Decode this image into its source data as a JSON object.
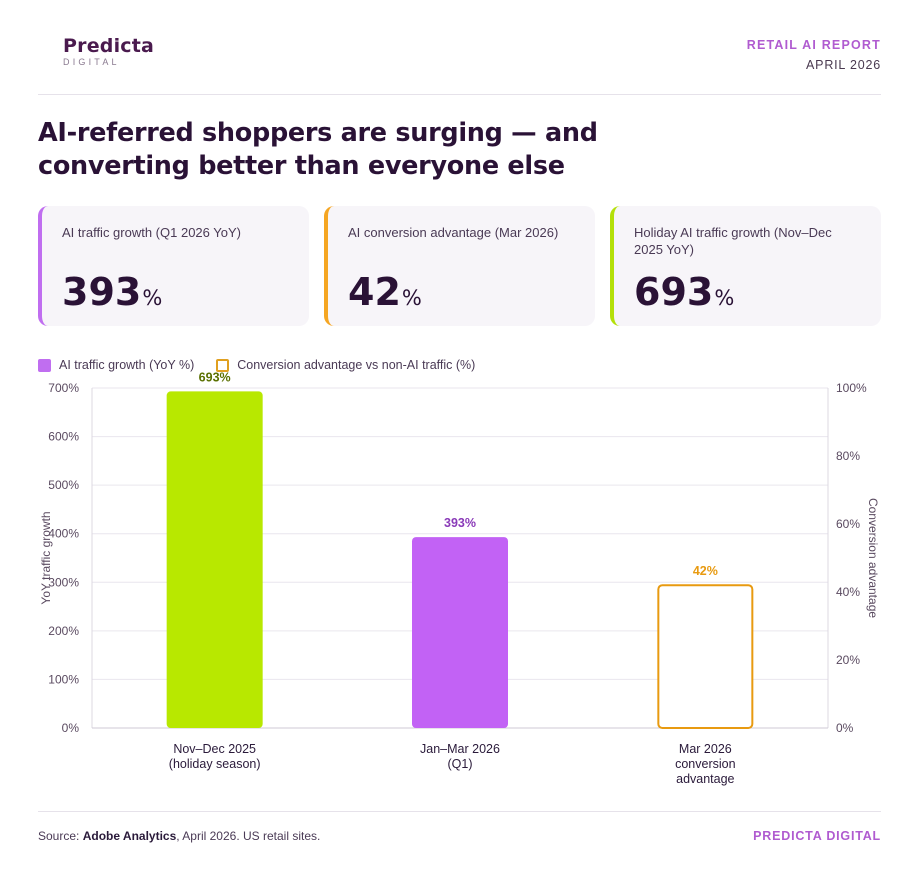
{
  "brand": {
    "logo_main": "Predicta",
    "logo_sub": "DIGITAL",
    "report_label": "RETAIL AI REPORT",
    "report_date": "APRIL 2026"
  },
  "headline": "AI-referred shoppers are surging — and converting better than everyone else",
  "kpis": [
    {
      "label": "AI traffic growth (Q1 2026 YoY)",
      "value": "393",
      "unit": "%",
      "accent": "#c06ef0"
    },
    {
      "label": "AI conversion advantage (Mar 2026)",
      "value": "42",
      "unit": "%",
      "accent": "#f5a623"
    },
    {
      "label": "Holiday AI traffic growth (Nov–Dec 2025 YoY)",
      "value": "693",
      "unit": "%",
      "accent": "#b4e00a"
    }
  ],
  "legend": [
    {
      "label": "AI traffic growth (YoY %)",
      "color": "#c06ef0",
      "style": "filled"
    },
    {
      "label": "Conversion advantage vs non-AI traffic (%)",
      "color": "#e0a020",
      "style": "outline"
    }
  ],
  "chart_data": {
    "type": "bar",
    "categories": [
      [
        "Nov–Dec 2025",
        "(holiday season)"
      ],
      [
        "Jan–Mar 2026",
        "(Q1)"
      ],
      [
        "Mar 2026",
        "conversion",
        "advantage"
      ]
    ],
    "series": [
      {
        "name": "AI traffic growth (YoY %)",
        "axis": "left",
        "values": [
          693,
          393,
          null
        ]
      },
      {
        "name": "Conversion advantage vs non-AI traffic (%)",
        "axis": "right",
        "values": [
          null,
          null,
          42
        ]
      }
    ],
    "bar_colors": [
      "#b8e800",
      "#c262f5",
      "#e89a10"
    ],
    "data_labels": [
      "693%",
      "393%",
      "42%"
    ],
    "data_label_colors": [
      "#5a7000",
      "#8a3ab8",
      "#e89a10"
    ],
    "ylabel": "YoY traffic growth",
    "ylabel_right": "Conversion advantage",
    "ylim": [
      0,
      700
    ],
    "ylim_right": [
      0,
      100
    ],
    "yticks": [
      "0%",
      "100%",
      "200%",
      "300%",
      "400%",
      "500%",
      "600%",
      "700%"
    ],
    "yticks_right": [
      "0%",
      "20%",
      "40%",
      "60%",
      "80%",
      "100%"
    ],
    "grid": true
  },
  "footer": {
    "source_prefix": "Source: ",
    "source_name": "Adobe Analytics",
    "source_rest": ", April 2026. US retail sites.",
    "brand": "PREDICTA DIGITAL"
  }
}
